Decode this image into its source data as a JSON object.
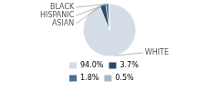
{
  "chart_data": {
    "type": "pie",
    "categories": [
      "WHITE",
      "ASIAN",
      "HISPANIC",
      "BLACK"
    ],
    "values": [
      94.0,
      3.7,
      1.8,
      0.5
    ],
    "value_labels": [
      "94.0%",
      "3.7%",
      "1.8%",
      "0.5%"
    ],
    "colors": [
      "#d4dce8",
      "#2b4a6b",
      "#4d6f96",
      "#a5b8cc"
    ],
    "legend": "lower left"
  }
}
